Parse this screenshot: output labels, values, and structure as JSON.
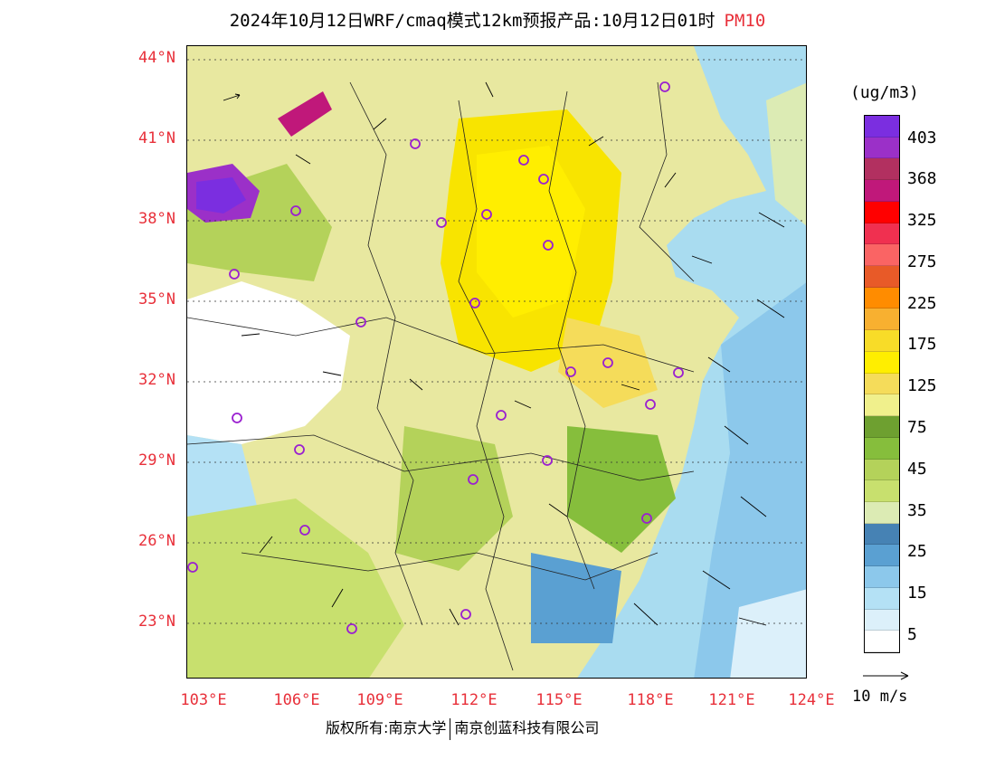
{
  "header": {
    "title": "2024年10月12日WRF/cmaq模式12km预报产品:10月12日01时",
    "pollutant": "PM10"
  },
  "map": {
    "lat_labels": [
      "44°N",
      "41°N",
      "38°N",
      "35°N",
      "32°N",
      "29°N",
      "26°N",
      "23°N"
    ],
    "lon_labels": [
      "103°E",
      "106°E",
      "109°E",
      "112°E",
      "115°E",
      "118°E",
      "121°E",
      "124°E"
    ],
    "colors": {
      "land_base": "#e8e8a0",
      "ocean": "#a9dcf0",
      "high": "#f8e400",
      "purple": "#8a2be2",
      "station": "#9a1fd0"
    }
  },
  "legend": {
    "units": "(ug/m3)",
    "labels": [
      "403",
      "368",
      "325",
      "275",
      "225",
      "175",
      "125",
      "75",
      "45",
      "35",
      "25",
      "15",
      "5"
    ],
    "colors": [
      "#7b2ee0",
      "#9b30c8",
      "#b23060",
      "#c0187a",
      "#ff0000",
      "#f03050",
      "#fa6464",
      "#e85a28",
      "#ff8c00",
      "#f8b030",
      "#f8dc28",
      "#ffee00",
      "#f5dc5a",
      "#f0f08c",
      "#6ea030",
      "#86be3c",
      "#b4d25a",
      "#c8e06e",
      "#dcebb4",
      "#4682b4",
      "#5aa0d2",
      "#8cc8eb",
      "#b4e1f5",
      "#dcf0fa",
      "#ffffff"
    ]
  },
  "wind_reference": {
    "label": "10 m/s"
  },
  "footer": {
    "copyright_left": "版权所有:南京大学",
    "copyright_right": "南京创蓝科技有限公司"
  }
}
